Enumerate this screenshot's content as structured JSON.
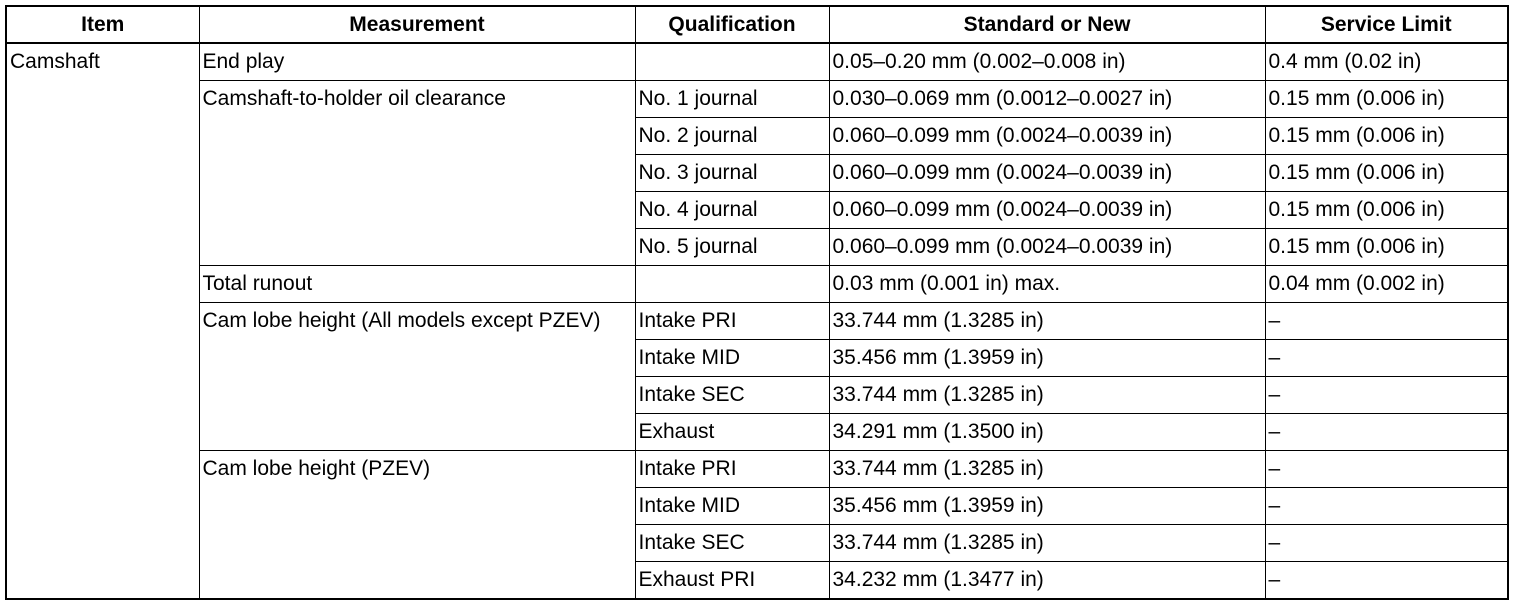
{
  "table": {
    "header": [
      "Item",
      "Measurement",
      "Qualification",
      "Standard or New",
      "Service Limit"
    ],
    "rows": [
      [
        "Camshaft",
        "End play",
        "0.05–0.20 mm (0.002–0.008 in)",
        "0.4 mm (0.02 in)"
      ],
      [
        "Camshaft-to-holder oil clearance",
        "No. 1 journal",
        "0.030–0.069 mm (0.0012–0.0027 in)",
        "0.15 mm (0.006 in)"
      ],
      [
        "No. 2 journal",
        "0.060–0.099 mm (0.0024–0.0039 in)",
        "0.15 mm (0.006 in)"
      ],
      [
        "No. 3 journal",
        "0.060–0.099 mm (0.0024–0.0039 in)",
        "0.15 mm (0.006 in)"
      ],
      [
        "No. 4 journal",
        "0.060–0.099 mm (0.0024–0.0039 in)",
        "0.15 mm (0.006 in)"
      ],
      [
        "No. 5 journal",
        "0.060–0.099 mm (0.0024–0.0039 in)",
        "0.15 mm (0.006 in)"
      ],
      [
        "Total runout",
        "0.03 mm (0.001 in) max.",
        "0.04 mm (0.002 in)"
      ],
      [
        "Cam lobe height (All models except PZEV)",
        "Intake PRI",
        "33.744 mm (1.3285 in)",
        "–"
      ],
      [
        "Intake MID",
        "35.456 mm (1.3959 in)",
        "–"
      ],
      [
        "Intake SEC",
        "33.744 mm (1.3285 in)",
        "–"
      ],
      [
        "Exhaust",
        "34.291 mm (1.3500 in)",
        "–"
      ],
      [
        "Cam lobe height (PZEV)",
        "Intake PRI",
        "33.744 mm (1.3285 in)",
        "–"
      ],
      [
        "Intake MID",
        "35.456 mm (1.3959 in)",
        "–"
      ],
      [
        "Intake SEC",
        "33.744 mm (1.3285 in)",
        "–"
      ],
      [
        "Exhaust PRI",
        "34.232 mm (1.3477 in)",
        "–"
      ]
    ]
  }
}
